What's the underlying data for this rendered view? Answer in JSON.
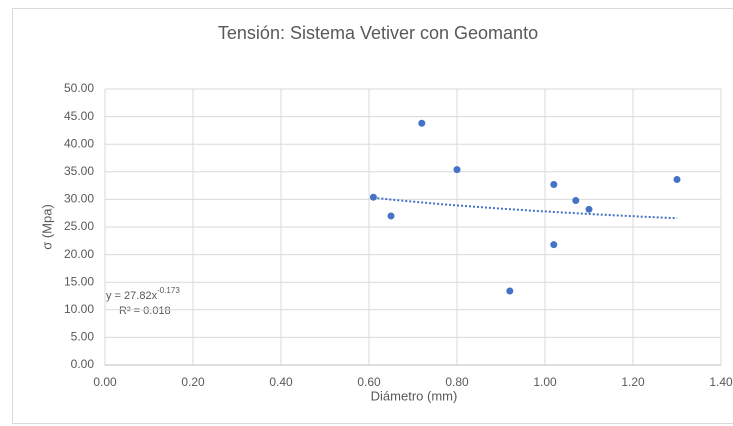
{
  "chart_data": {
    "type": "scatter",
    "title": "Tensión: Sistema Vetiver con Geomanto",
    "x_label": "Diámetro (mm)",
    "y_label": "σ (Mpa)",
    "series": [
      {
        "name": "Tensión",
        "color": "#4472c4",
        "x": [
          0.61,
          0.65,
          0.72,
          0.8,
          0.92,
          1.02,
          1.02,
          1.07,
          1.1,
          1.3
        ],
        "values": [
          30.4,
          27.0,
          43.8,
          35.4,
          13.4,
          32.7,
          21.8,
          29.8,
          28.2,
          33.6
        ]
      }
    ],
    "trendline": {
      "type": "power",
      "a": 27.82,
      "b": -0.173,
      "equation": "y = 27.82x",
      "exponent_label": "-0.173",
      "r2_label": "R² = 0.018"
    },
    "xlim": [
      0,
      1.4
    ],
    "xticks": [
      {
        "value": 0,
        "label": "0.00"
      },
      {
        "value": 0.2,
        "label": "0.20"
      },
      {
        "value": 0.4,
        "label": "0.40"
      },
      {
        "value": 0.6,
        "label": "0.60"
      },
      {
        "value": 0.8,
        "label": "0.80"
      },
      {
        "value": 1.0,
        "label": "1.00"
      },
      {
        "value": 1.2,
        "label": "1.20"
      },
      {
        "value": 1.4,
        "label": "1.40"
      }
    ],
    "ylim": [
      0,
      50
    ],
    "yticks": [
      {
        "value": 0,
        "label": "0.00"
      },
      {
        "value": 5,
        "label": "5.00"
      },
      {
        "value": 10,
        "label": "10.00"
      },
      {
        "value": 15,
        "label": "15.00"
      },
      {
        "value": 20,
        "label": "20.00"
      },
      {
        "value": 25,
        "label": "25.00"
      },
      {
        "value": 30,
        "label": "30.00"
      },
      {
        "value": 35,
        "label": "35.00"
      },
      {
        "value": 40,
        "label": "40.00"
      },
      {
        "value": 45,
        "label": "45.00"
      },
      {
        "value": 50,
        "label": "50.00"
      }
    ],
    "grid": true
  }
}
